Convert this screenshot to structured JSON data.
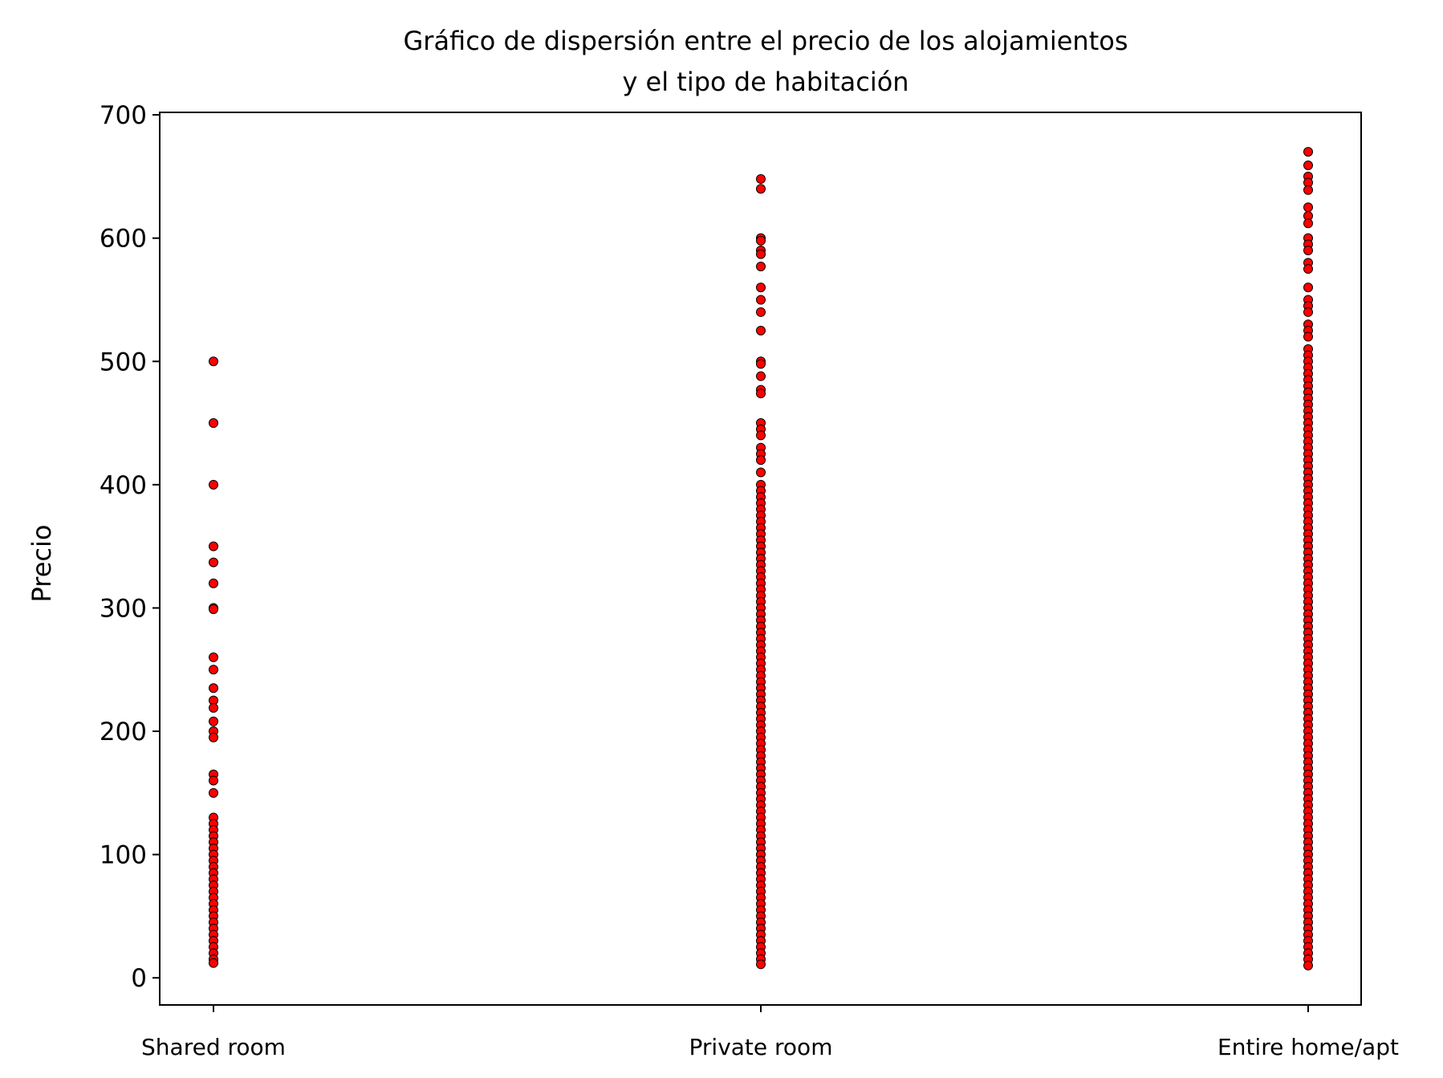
{
  "chart_data": {
    "type": "scatter",
    "title_lines": [
      "Gráfico de dispersión entre el precio de los alojamientos",
      "y el tipo de habitación"
    ],
    "xlabel": "",
    "ylabel": "Precio",
    "categories": [
      "Shared room",
      "Private room",
      "Entire home/apt"
    ],
    "yticks": [
      0,
      100,
      200,
      300,
      400,
      500,
      600,
      700
    ],
    "ytick_labels": [
      "0",
      "100",
      "200",
      "300",
      "400",
      "500",
      "600",
      "700"
    ],
    "ylim": [
      -22,
      702
    ],
    "grid": false,
    "legend": "none",
    "marker_color": "#ff0000",
    "marker_edge_color": "#000000",
    "series": [
      {
        "category": "Shared room",
        "y": [
          500,
          450,
          400,
          350,
          337,
          320,
          300,
          299,
          260,
          250,
          235,
          225,
          219,
          208,
          200,
          195,
          165,
          160,
          150,
          130,
          125,
          120,
          115,
          110,
          105,
          100,
          95,
          90,
          85,
          80,
          75,
          70,
          65,
          60,
          55,
          50,
          45,
          40,
          35,
          30,
          25,
          20,
          15,
          12
        ]
      },
      {
        "category": "Private room",
        "y": [
          648,
          640,
          600,
          598,
          590,
          587,
          577,
          560,
          550,
          540,
          525,
          500,
          498,
          488,
          477,
          474,
          450,
          445,
          440,
          430,
          425,
          420,
          410,
          400,
          395,
          390,
          385,
          380,
          375,
          370,
          365,
          360,
          355,
          350,
          345,
          340,
          335,
          330,
          325,
          320,
          315,
          310,
          305,
          300,
          295,
          290,
          285,
          280,
          275,
          270,
          265,
          260,
          255,
          250,
          245,
          240,
          235,
          230,
          225,
          220,
          215,
          210,
          205,
          200,
          195,
          190,
          185,
          180,
          175,
          170,
          165,
          160,
          155,
          150,
          145,
          140,
          135,
          130,
          125,
          120,
          115,
          110,
          105,
          100,
          95,
          90,
          85,
          80,
          75,
          70,
          65,
          60,
          55,
          50,
          45,
          40,
          35,
          30,
          25,
          20,
          15,
          11
        ]
      },
      {
        "category": "Entire home/apt",
        "y": [
          670,
          659,
          650,
          645,
          639,
          625,
          618,
          612,
          600,
          595,
          590,
          580,
          575,
          560,
          550,
          545,
          540,
          530,
          525,
          520,
          510,
          505,
          500,
          495,
          490,
          485,
          480,
          475,
          470,
          465,
          460,
          455,
          450,
          445,
          440,
          435,
          430,
          425,
          420,
          415,
          410,
          405,
          400,
          395,
          390,
          385,
          380,
          375,
          370,
          365,
          360,
          355,
          350,
          345,
          340,
          335,
          330,
          325,
          320,
          315,
          310,
          305,
          300,
          295,
          290,
          285,
          280,
          275,
          270,
          265,
          260,
          255,
          250,
          245,
          240,
          235,
          230,
          225,
          220,
          215,
          210,
          205,
          200,
          195,
          190,
          185,
          180,
          175,
          170,
          165,
          160,
          155,
          150,
          145,
          140,
          135,
          130,
          125,
          120,
          115,
          110,
          105,
          100,
          95,
          90,
          85,
          80,
          75,
          70,
          65,
          60,
          55,
          50,
          45,
          40,
          35,
          30,
          25,
          20,
          15,
          10
        ]
      }
    ]
  }
}
